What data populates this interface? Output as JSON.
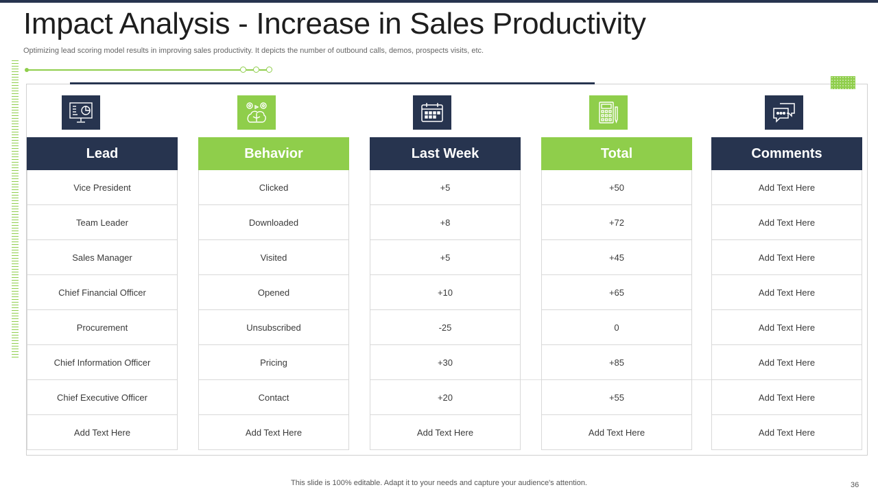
{
  "slide": {
    "title": "Impact Analysis - Increase in Sales Productivity",
    "subtitle": "Optimizing lead scoring model results in improving sales productivity. It depicts the number of outbound calls, demos, prospects visits, etc.",
    "footer": "This slide is 100% editable. Adapt it to your needs and capture your audience's attention.",
    "page_number": "36"
  },
  "colors": {
    "navy": "#27344f",
    "green": "#8fce4b",
    "border": "#d8d8d8"
  },
  "columns": [
    {
      "key": "lead",
      "header": "Lead",
      "icon": "presentation-board-icon",
      "color": "navy",
      "cells": [
        "Vice President",
        "Team Leader",
        "Sales Manager",
        "Chief Financial Officer",
        "Procurement",
        "Chief Information Officer",
        "Chief Executive Officer",
        "Add Text Here"
      ]
    },
    {
      "key": "behavior",
      "header": "Behavior",
      "icon": "brain-gears-icon",
      "color": "green",
      "cells": [
        "Clicked",
        "Downloaded",
        "Visited",
        "Opened",
        "Unsubscribed",
        "Pricing",
        "Contact",
        "Add Text Here"
      ]
    },
    {
      "key": "last_week",
      "header": "Last Week",
      "icon": "calendar-icon",
      "color": "navy",
      "cells": [
        "+5",
        "+8",
        "+5",
        "+10",
        "-25",
        "+30",
        "+20",
        "Add Text Here"
      ]
    },
    {
      "key": "total",
      "header": "Total",
      "icon": "calculator-icon",
      "color": "green",
      "cells": [
        "+50",
        "+72",
        "+45",
        "+65",
        "0",
        "+85",
        "+55",
        "Add Text Here"
      ]
    },
    {
      "key": "comments",
      "header": "Comments",
      "icon": "chat-bubbles-icon",
      "color": "navy",
      "cells": [
        "Add Text Here",
        "Add Text Here",
        "Add Text Here",
        "Add Text Here",
        "Add Text Here",
        "Add Text Here",
        "Add Text Here",
        "Add Text Here"
      ]
    }
  ]
}
